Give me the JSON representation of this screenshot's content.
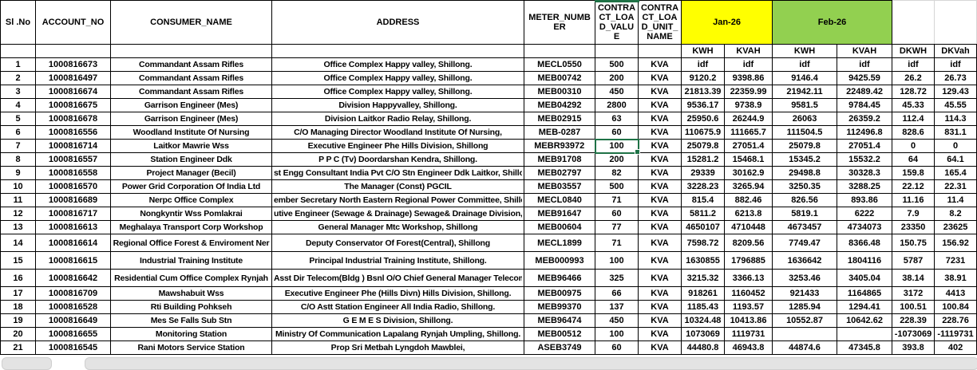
{
  "sheet": {
    "headers": {
      "sl_no": "Sl .No",
      "account_no": "ACCOUNT_NO",
      "consumer_name": "CONSUMER_NAME",
      "address": "ADDRESS",
      "meter_number": "METER_NUMBER",
      "contract_load_value": "CONTRACT_LOAD_VALUE",
      "contract_load_unit_name": "CONTRACT_LOAD_UNIT_NAME",
      "month1": "Jan-26",
      "month2": "Feb-26",
      "sub": [
        "KWH",
        "KVAH",
        "KWH",
        "KVAH",
        "DKWH",
        "DKVah"
      ]
    },
    "colors": {
      "month1_bg": "#FFFF00",
      "month2_bg": "#92D050",
      "selection": "#1F7246"
    },
    "selection": {
      "row_sl": "7",
      "field": "load"
    },
    "rows": [
      {
        "sl": "1",
        "account": "1000816673",
        "name": "Commandant Assam Rifles",
        "address": "Office Complex Happy valley, Shillong.",
        "meter": "MECL0550",
        "load": "500",
        "unit": "KVA",
        "jan_kwh": "idf",
        "jan_kvah": "idf",
        "feb_kwh": "idf",
        "feb_kvah": "idf",
        "dkwh": "idf",
        "dkvah": "idf"
      },
      {
        "sl": "2",
        "account": "1000816497",
        "name": "Commandant Assam Rifles",
        "address": "Office Complex Happy valley, Shillong.",
        "meter": "MEB00742",
        "load": "200",
        "unit": "KVA",
        "jan_kwh": "9120.2",
        "jan_kvah": "9398.86",
        "feb_kwh": "9146.4",
        "feb_kvah": "9425.59",
        "dkwh": "26.2",
        "dkvah": "26.73"
      },
      {
        "sl": "3",
        "account": "1000816674",
        "name": "Commandant Assam Rifles",
        "address": "Office Complex Happy valley, Shillong.",
        "meter": "MEB00310",
        "load": "450",
        "unit": "KVA",
        "jan_kwh": "21813.39",
        "jan_kvah": "22359.99",
        "feb_kwh": "21942.11",
        "feb_kvah": "22489.42",
        "dkwh": "128.72",
        "dkvah": "129.43"
      },
      {
        "sl": "4",
        "account": "1000816675",
        "name": "Garrison Engineer (Mes)",
        "address": "Division Happyvalley, Shillong.",
        "meter": "MEB04292",
        "load": "2800",
        "unit": "KVA",
        "jan_kwh": "9536.17",
        "jan_kvah": "9738.9",
        "feb_kwh": "9581.5",
        "feb_kvah": "9784.45",
        "dkwh": "45.33",
        "dkvah": "45.55"
      },
      {
        "sl": "5",
        "account": "1000816678",
        "name": "Garrison Engineer (Mes)",
        "address": "Division Laitkor Radio Relay, Shillong.",
        "meter": "MEB02915",
        "load": "63",
        "unit": "KVA",
        "jan_kwh": "25950.6",
        "jan_kvah": "26244.9",
        "feb_kwh": "26063",
        "feb_kvah": "26359.2",
        "dkwh": "112.4",
        "dkvah": "114.3"
      },
      {
        "sl": "6",
        "account": "1000816556",
        "name": "Woodland Institute Of Nursing",
        "address": "C/O Managing Director Woodland Institute Of Nursing,",
        "meter": "MEB-0287",
        "load": "60",
        "unit": "KVA",
        "jan_kwh": "110675.9",
        "jan_kvah": "111665.7",
        "feb_kwh": "111504.5",
        "feb_kvah": "112496.8",
        "dkwh": "828.6",
        "dkvah": "831.1"
      },
      {
        "sl": "7",
        "account": "1000816714",
        "name": "Laitkor Mawrie Wss",
        "address": "Executive Engineer Phe Hills Division, Shillong",
        "meter": "MEBR93972",
        "load": "100",
        "unit": "KVA",
        "jan_kwh": "25079.8",
        "jan_kvah": "27051.4",
        "feb_kwh": "25079.8",
        "feb_kvah": "27051.4",
        "dkwh": "0",
        "dkvah": "0"
      },
      {
        "sl": "8",
        "account": "1000816557",
        "name": "Station Engineer Ddk",
        "address": "P P C (Tv) Doordarshan Kendra, Shillong.",
        "meter": "MEB91708",
        "load": "200",
        "unit": "KVA",
        "jan_kwh": "15281.2",
        "jan_kvah": "15468.1",
        "feb_kwh": "15345.2",
        "feb_kvah": "15532.2",
        "dkwh": "64",
        "dkvah": "64.1"
      },
      {
        "sl": "9",
        "account": "1000816558",
        "name": "Project Manager (Becil)",
        "address": "st Engg Consultant India Pvt C/O Stn Engineer Ddk Laitkor, Shillong. #",
        "meter": "MEB02797",
        "load": "82",
        "unit": "KVA",
        "jan_kwh": "29339",
        "jan_kvah": "30162.9",
        "feb_kwh": "29498.8",
        "feb_kvah": "30328.3",
        "dkwh": "159.8",
        "dkvah": "165.4"
      },
      {
        "sl": "10",
        "account": "1000816570",
        "name": "Power Grid Corporation Of India Ltd",
        "address": "The Manager (Const) PGCIL",
        "meter": "MEB03557",
        "load": "500",
        "unit": "KVA",
        "jan_kwh": "3228.23",
        "jan_kvah": "3265.94",
        "feb_kwh": "3250.35",
        "feb_kvah": "3288.25",
        "dkwh": "22.12",
        "dkvah": "22.31"
      },
      {
        "sl": "11",
        "account": "1000816689",
        "name": "Nerpc Office Complex",
        "address": "ember Secretary North Eastern Regional Power Committee, Shillon",
        "meter": "MECL0840",
        "load": "71",
        "unit": "KVA",
        "jan_kwh": "815.4",
        "jan_kvah": "882.46",
        "feb_kwh": "826.56",
        "feb_kvah": "893.86",
        "dkwh": "11.16",
        "dkvah": "11.4"
      },
      {
        "sl": "12",
        "account": "1000816717",
        "name": "Nongkyntir Wss Pomlakrai",
        "address": "utive Engineer (Sewage & Drainage) Sewage& Drainage Division, Shi",
        "meter": "MEB91647",
        "load": "60",
        "unit": "KVA",
        "jan_kwh": "5811.2",
        "jan_kvah": "6213.8",
        "feb_kwh": "5819.1",
        "feb_kvah": "6222",
        "dkwh": "7.9",
        "dkvah": "8.2"
      },
      {
        "sl": "13",
        "account": "1000816613",
        "name": "Meghalaya Transport Corp Workshop",
        "address": "General Manager Mtc Workshop, Shillong",
        "meter": "MEB00604",
        "load": "77",
        "unit": "KVA",
        "jan_kwh": "4650107",
        "jan_kvah": "4710448",
        "feb_kwh": "4673457",
        "feb_kvah": "4734073",
        "dkwh": "23350",
        "dkvah": "23625"
      },
      {
        "sl": "14",
        "account": "1000816614",
        "name": "Regional Office Forest & Enviroment Ner",
        "address": "Deputy Conservator Of Forest(Central), Shillong",
        "meter": "MECL1899",
        "load": "71",
        "unit": "KVA",
        "jan_kwh": "7598.72",
        "jan_kvah": "8209.56",
        "feb_kwh": "7749.47",
        "feb_kvah": "8366.48",
        "dkwh": "150.75",
        "dkvah": "156.92"
      },
      {
        "sl": "15",
        "account": "1000816615",
        "name": "Industrial Training Institute",
        "address": "Principal Industrial Training Institute, Shillong.",
        "meter": "MEB000993",
        "load": "100",
        "unit": "KVA",
        "jan_kwh": "1630855",
        "jan_kvah": "1796885",
        "feb_kwh": "1636642",
        "feb_kvah": "1804116",
        "dkwh": "5787",
        "dkvah": "7231"
      },
      {
        "sl": "16",
        "account": "1000816642",
        "name": "Residential Cum Office Complex Rynjah",
        "address": "Asst Dir Telecom(Bldg ) Bsnl O/O Chief General Manager Telecom",
        "meter": "MEB96466",
        "load": "325",
        "unit": "KVA",
        "jan_kwh": "3215.32",
        "jan_kvah": "3366.13",
        "feb_kwh": "3253.46",
        "feb_kvah": "3405.04",
        "dkwh": "38.14",
        "dkvah": "38.91"
      },
      {
        "sl": "17",
        "account": "1000816709",
        "name": "Mawshabuit Wss",
        "address": "Executive Engineer Phe (Hills Divn) Hills Division, Shillong.",
        "meter": "MEB00975",
        "load": "66",
        "unit": "KVA",
        "jan_kwh": "918261",
        "jan_kvah": "1160452",
        "feb_kwh": "921433",
        "feb_kvah": "1164865",
        "dkwh": "3172",
        "dkvah": "4413"
      },
      {
        "sl": "18",
        "account": "1000816528",
        "name": "Rti Building Pohkseh",
        "address": "C/O Astt Station Engineer All India Radio, Shillong.",
        "meter": "MEB99370",
        "load": "137",
        "unit": "KVA",
        "jan_kwh": "1185.43",
        "jan_kvah": "1193.57",
        "feb_kwh": "1285.94",
        "feb_kvah": "1294.41",
        "dkwh": "100.51",
        "dkvah": "100.84"
      },
      {
        "sl": "19",
        "account": "1000816649",
        "name": "Mes Se Falls Sub Stn",
        "address": "G E M E S Division, Shillong.",
        "meter": "MEB96474",
        "load": "450",
        "unit": "KVA",
        "jan_kwh": "10324.48",
        "jan_kvah": "10413.86",
        "feb_kwh": "10552.87",
        "feb_kvah": "10642.62",
        "dkwh": "228.39",
        "dkvah": "228.76"
      },
      {
        "sl": "20",
        "account": "1000816655",
        "name": "Monitoring Station",
        "address": "Ministry Of Communication Lapalang Rynjah Umpling, Shillong.",
        "meter": "MEB00512",
        "load": "100",
        "unit": "KVA",
        "jan_kwh": "1073069",
        "jan_kvah": "1119731",
        "feb_kwh": "",
        "feb_kvah": "",
        "dkwh": "-1073069",
        "dkvah": "-1119731"
      },
      {
        "sl": "21",
        "account": "1000816545",
        "name": "Rani Motors Service Station",
        "address": "Prop Sri Metbah Lyngdoh Mawblei,",
        "meter": "ASEB3749",
        "load": "60",
        "unit": "KVA",
        "jan_kwh": "44480.8",
        "jan_kvah": "46943.8",
        "feb_kwh": "44874.6",
        "feb_kvah": "47345.8",
        "dkwh": "393.8",
        "dkvah": "402"
      }
    ]
  }
}
